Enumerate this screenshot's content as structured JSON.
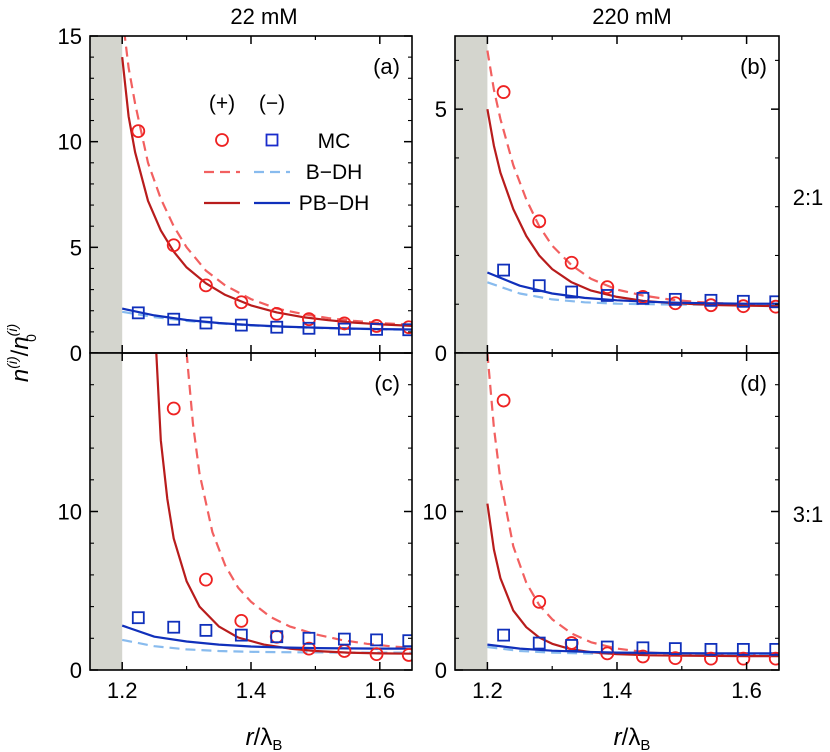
{
  "figure": {
    "columns": [
      "22 mM",
      "220 mM"
    ],
    "rows": [
      "2:1",
      "3:1"
    ],
    "ylabel_base": "n",
    "ylabel_sup": "(i)",
    "ylabel_sep": "/",
    "ylabel_sub": "0",
    "xlabel_italic": "r",
    "xlabel_rest": "/λ",
    "xlabel_sub": "B"
  },
  "legend": {
    "col_plus": "(+)",
    "col_minus": "(−)",
    "entries": [
      "MC",
      "B−DH",
      "PB−DH"
    ]
  },
  "colors": {
    "plus_mc": "#ee2222",
    "plus_bdh": "#f26060",
    "plus_pbdh": "#b81c1c",
    "minus_mc": "#1a2ccc",
    "minus_bdh": "#88bbee",
    "minus_pbdh": "#1030bb",
    "excluded_region": "#d4d5ce"
  },
  "chart_data": [
    {
      "panel": "(a)",
      "type": "line",
      "column": "22 mM",
      "row": "2:1",
      "xlim": [
        1.15,
        1.65
      ],
      "ylim": [
        0,
        15
      ],
      "xticks": [
        1.2,
        1.4,
        1.6
      ],
      "yticks": [
        0,
        5,
        10,
        15
      ],
      "ytick_labels": [
        "0",
        "5",
        "10",
        "15"
      ],
      "excluded_x": [
        1.15,
        1.2
      ],
      "series": [
        {
          "name": "MC (+)",
          "kind": "circle",
          "x": [
            1.225,
            1.28,
            1.33,
            1.385,
            1.44,
            1.49,
            1.545,
            1.595,
            1.645
          ],
          "y": [
            10.5,
            5.1,
            3.2,
            2.4,
            1.85,
            1.6,
            1.4,
            1.28,
            1.22
          ]
        },
        {
          "name": "MC (−)",
          "kind": "square",
          "x": [
            1.225,
            1.28,
            1.33,
            1.385,
            1.44,
            1.49,
            1.545,
            1.595,
            1.645
          ],
          "y": [
            1.9,
            1.6,
            1.42,
            1.32,
            1.22,
            1.17,
            1.13,
            1.12,
            1.1
          ]
        },
        {
          "name": "B−DH (+)",
          "kind": "dashed",
          "x": [
            1.2,
            1.21,
            1.22,
            1.24,
            1.26,
            1.28,
            1.3,
            1.33,
            1.36,
            1.4,
            1.44,
            1.48,
            1.52,
            1.56,
            1.6,
            1.65
          ],
          "y": [
            16,
            13.5,
            11.8,
            9,
            7.3,
            6,
            5,
            3.9,
            3.2,
            2.55,
            2.1,
            1.85,
            1.65,
            1.52,
            1.42,
            1.33
          ]
        },
        {
          "name": "B−DH (−)",
          "kind": "dashed",
          "x": [
            1.2,
            1.25,
            1.3,
            1.35,
            1.4,
            1.45,
            1.5,
            1.55,
            1.6,
            1.65
          ],
          "y": [
            1.95,
            1.7,
            1.52,
            1.4,
            1.3,
            1.24,
            1.19,
            1.15,
            1.12,
            1.1
          ]
        },
        {
          "name": "PB−DH (+)",
          "kind": "solid",
          "x": [
            1.2,
            1.21,
            1.22,
            1.24,
            1.26,
            1.28,
            1.3,
            1.33,
            1.36,
            1.4,
            1.44,
            1.48,
            1.52,
            1.56,
            1.6,
            1.65
          ],
          "y": [
            14,
            11.2,
            9.5,
            7.2,
            5.8,
            4.8,
            4.05,
            3.3,
            2.75,
            2.25,
            1.92,
            1.7,
            1.55,
            1.44,
            1.36,
            1.28
          ]
        },
        {
          "name": "PB−DH (−)",
          "kind": "solid",
          "x": [
            1.2,
            1.25,
            1.3,
            1.35,
            1.4,
            1.45,
            1.5,
            1.55,
            1.6,
            1.65
          ],
          "y": [
            2.1,
            1.78,
            1.56,
            1.42,
            1.32,
            1.25,
            1.2,
            1.16,
            1.13,
            1.11
          ]
        }
      ]
    },
    {
      "panel": "(b)",
      "type": "line",
      "column": "220 mM",
      "row": "2:1",
      "xlim": [
        1.15,
        1.65
      ],
      "ylim": [
        0,
        6.5
      ],
      "xticks": [
        1.2,
        1.4,
        1.6
      ],
      "yticks": [
        0,
        5
      ],
      "ytick_labels": [
        "0",
        "5"
      ],
      "excluded_x": [
        1.15,
        1.2
      ],
      "series": [
        {
          "name": "MC (+)",
          "kind": "circle",
          "x": [
            1.225,
            1.28,
            1.33,
            1.385,
            1.44,
            1.49,
            1.545,
            1.595,
            1.645
          ],
          "y": [
            5.35,
            2.7,
            1.85,
            1.35,
            1.15,
            1.02,
            0.98,
            0.96,
            0.95
          ]
        },
        {
          "name": "MC (−)",
          "kind": "square",
          "x": [
            1.225,
            1.28,
            1.33,
            1.385,
            1.44,
            1.49,
            1.545,
            1.595,
            1.645
          ],
          "y": [
            1.7,
            1.38,
            1.25,
            1.18,
            1.12,
            1.1,
            1.08,
            1.06,
            1.05
          ]
        },
        {
          "name": "B−DH (+)",
          "kind": "dashed",
          "x": [
            1.2,
            1.21,
            1.22,
            1.24,
            1.26,
            1.28,
            1.3,
            1.33,
            1.36,
            1.4,
            1.44,
            1.48,
            1.52,
            1.56,
            1.6,
            1.65
          ],
          "y": [
            6.2,
            5.4,
            4.8,
            3.85,
            3.15,
            2.6,
            2.2,
            1.8,
            1.52,
            1.3,
            1.18,
            1.1,
            1.05,
            1.02,
            1.0,
            0.98
          ]
        },
        {
          "name": "B−DH (−)",
          "kind": "dashed",
          "x": [
            1.2,
            1.25,
            1.3,
            1.35,
            1.4,
            1.45,
            1.5,
            1.55,
            1.6,
            1.65
          ],
          "y": [
            1.45,
            1.22,
            1.1,
            1.04,
            1.01,
            1.0,
            0.99,
            0.99,
            0.99,
            0.99
          ]
        },
        {
          "name": "PB−DH (+)",
          "kind": "solid",
          "x": [
            1.2,
            1.21,
            1.22,
            1.24,
            1.26,
            1.28,
            1.3,
            1.33,
            1.36,
            1.4,
            1.44,
            1.48,
            1.52,
            1.56,
            1.6,
            1.65
          ],
          "y": [
            5.0,
            4.25,
            3.7,
            2.95,
            2.4,
            2.0,
            1.72,
            1.45,
            1.28,
            1.15,
            1.07,
            1.03,
            1.0,
            0.98,
            0.97,
            0.96
          ]
        },
        {
          "name": "PB−DH (−)",
          "kind": "solid",
          "x": [
            1.2,
            1.25,
            1.3,
            1.35,
            1.4,
            1.45,
            1.5,
            1.55,
            1.6,
            1.65
          ],
          "y": [
            1.65,
            1.38,
            1.22,
            1.13,
            1.08,
            1.05,
            1.03,
            1.02,
            1.01,
            1.01
          ]
        }
      ]
    },
    {
      "panel": "(c)",
      "type": "line",
      "column": "22 mM",
      "row": "3:1",
      "xlim": [
        1.15,
        1.65
      ],
      "ylim": [
        0,
        20
      ],
      "xticks": [
        1.2,
        1.4,
        1.6
      ],
      "yticks": [
        0,
        10
      ],
      "ytick_labels": [
        "0",
        "10"
      ],
      "excluded_x": [
        1.15,
        1.2
      ],
      "series": [
        {
          "name": "MC (+)",
          "kind": "circle",
          "x": [
            1.28,
            1.33,
            1.385,
            1.44,
            1.49,
            1.545,
            1.595,
            1.645
          ],
          "y": [
            16.5,
            5.7,
            3.1,
            2.1,
            1.35,
            1.2,
            1.0,
            0.95
          ]
        },
        {
          "name": "MC (−)",
          "kind": "square",
          "x": [
            1.225,
            1.28,
            1.33,
            1.385,
            1.44,
            1.49,
            1.545,
            1.595,
            1.645
          ],
          "y": [
            3.3,
            2.7,
            2.5,
            2.2,
            2.1,
            2.0,
            1.95,
            1.9,
            1.85
          ]
        },
        {
          "name": "B−DH (+)",
          "kind": "dashed",
          "x": [
            1.3,
            1.31,
            1.32,
            1.34,
            1.36,
            1.38,
            1.4,
            1.43,
            1.46,
            1.5,
            1.54,
            1.58,
            1.62,
            1.65
          ],
          "y": [
            20,
            15.5,
            12.4,
            8.7,
            6.6,
            5.2,
            4.3,
            3.35,
            2.75,
            2.25,
            1.9,
            1.65,
            1.48,
            1.4
          ]
        },
        {
          "name": "B−DH (−)",
          "kind": "dashed",
          "x": [
            1.2,
            1.25,
            1.3,
            1.35,
            1.4,
            1.45,
            1.5,
            1.55,
            1.6,
            1.65
          ],
          "y": [
            1.9,
            1.5,
            1.3,
            1.2,
            1.15,
            1.12,
            1.11,
            1.1,
            1.1,
            1.1
          ]
        },
        {
          "name": "PB−DH (+)",
          "kind": "solid",
          "x": [
            1.253,
            1.26,
            1.27,
            1.28,
            1.3,
            1.32,
            1.35,
            1.38,
            1.42,
            1.46,
            1.5,
            1.55,
            1.6,
            1.65
          ],
          "y": [
            20,
            14.5,
            10.8,
            8.3,
            5.6,
            4.0,
            2.75,
            2.05,
            1.6,
            1.35,
            1.2,
            1.1,
            1.05,
            1.03
          ]
        },
        {
          "name": "PB−DH (−)",
          "kind": "solid",
          "x": [
            1.2,
            1.25,
            1.3,
            1.35,
            1.4,
            1.45,
            1.5,
            1.55,
            1.6,
            1.65
          ],
          "y": [
            2.8,
            2.1,
            1.8,
            1.6,
            1.48,
            1.42,
            1.38,
            1.36,
            1.35,
            1.35
          ]
        }
      ]
    },
    {
      "panel": "(d)",
      "type": "line",
      "column": "220 mM",
      "row": "3:1",
      "xlim": [
        1.15,
        1.65
      ],
      "ylim": [
        0,
        20
      ],
      "xticks": [
        1.2,
        1.4,
        1.6
      ],
      "yticks": [
        0,
        10
      ],
      "ytick_labels": [
        "0",
        "10"
      ],
      "excluded_x": [
        1.15,
        1.2
      ],
      "series": [
        {
          "name": "MC (+)",
          "kind": "circle",
          "x": [
            1.225,
            1.28,
            1.33,
            1.385,
            1.44,
            1.49,
            1.545,
            1.595,
            1.645
          ],
          "y": [
            17.0,
            4.3,
            1.7,
            1.05,
            0.85,
            0.75,
            0.72,
            0.72,
            0.72
          ]
        },
        {
          "name": "MC (−)",
          "kind": "square",
          "x": [
            1.225,
            1.28,
            1.33,
            1.385,
            1.44,
            1.49,
            1.545,
            1.595,
            1.645
          ],
          "y": [
            2.2,
            1.7,
            1.55,
            1.45,
            1.4,
            1.35,
            1.3,
            1.3,
            1.3
          ]
        },
        {
          "name": "B−DH (+)",
          "kind": "dashed",
          "x": [
            1.2,
            1.21,
            1.22,
            1.24,
            1.26,
            1.28,
            1.3,
            1.33,
            1.36,
            1.4,
            1.45,
            1.5,
            1.55,
            1.6,
            1.65
          ],
          "y": [
            20,
            15.3,
            12.0,
            7.8,
            5.5,
            4.1,
            3.2,
            2.3,
            1.75,
            1.35,
            1.1,
            1.0,
            0.95,
            0.93,
            0.92
          ]
        },
        {
          "name": "B−DH (−)",
          "kind": "dashed",
          "x": [
            1.2,
            1.25,
            1.3,
            1.35,
            1.4,
            1.45,
            1.5,
            1.55,
            1.6,
            1.65
          ],
          "y": [
            1.45,
            1.2,
            1.1,
            1.05,
            1.02,
            1.01,
            1.0,
            1.0,
            1.0,
            1.0
          ]
        },
        {
          "name": "PB−DH (+)",
          "kind": "solid",
          "x": [
            1.2,
            1.21,
            1.22,
            1.24,
            1.26,
            1.28,
            1.3,
            1.33,
            1.36,
            1.4,
            1.45,
            1.5,
            1.55,
            1.6,
            1.65
          ],
          "y": [
            10.5,
            7.6,
            5.8,
            3.75,
            2.7,
            2.05,
            1.65,
            1.3,
            1.12,
            1.0,
            0.93,
            0.9,
            0.89,
            0.88,
            0.88
          ]
        },
        {
          "name": "PB−DH (−)",
          "kind": "solid",
          "x": [
            1.2,
            1.25,
            1.3,
            1.35,
            1.4,
            1.45,
            1.5,
            1.55,
            1.6,
            1.65
          ],
          "y": [
            1.6,
            1.35,
            1.22,
            1.15,
            1.1,
            1.08,
            1.06,
            1.05,
            1.05,
            1.05
          ]
        }
      ]
    }
  ]
}
